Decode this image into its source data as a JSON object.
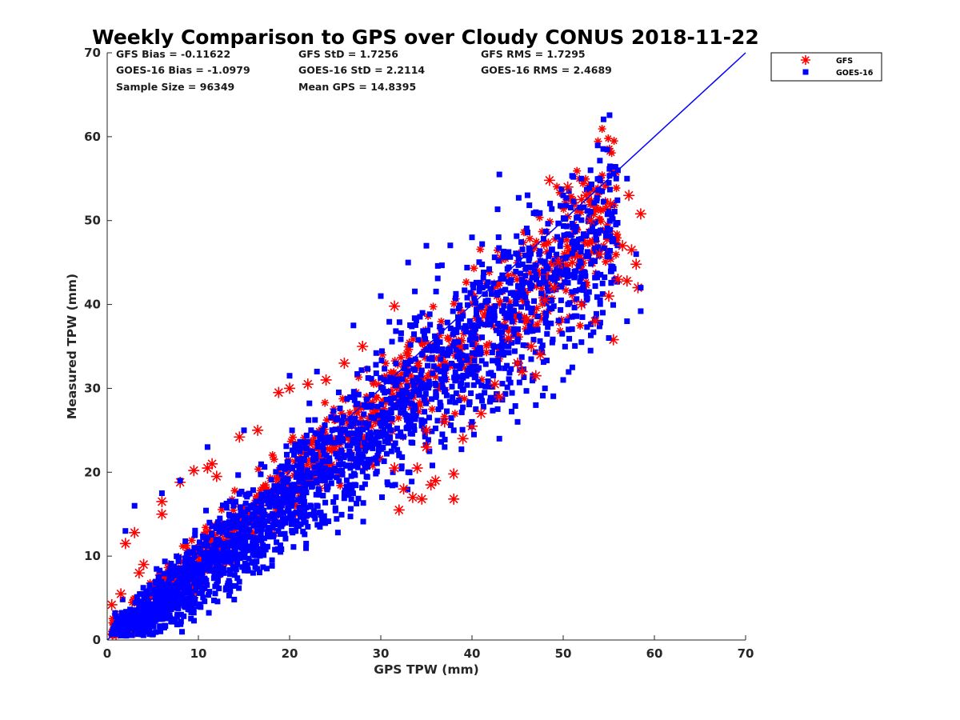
{
  "chart_data": {
    "type": "scatter",
    "title": "Weekly Comparison to GPS over Cloudy CONUS 2018-11-22",
    "xlabel": "GPS TPW (mm)",
    "ylabel": "Measured TPW (mm)",
    "xlim": [
      0,
      70
    ],
    "ylim": [
      0,
      70
    ],
    "xticks": [
      "0",
      "10",
      "20",
      "30",
      "40",
      "50",
      "60",
      "70"
    ],
    "yticks": [
      "0",
      "10",
      "20",
      "30",
      "40",
      "50",
      "60",
      "70"
    ],
    "grid": false,
    "legend_position": "outside-top-right",
    "stats": [
      [
        "GFS Bias = -0.11622",
        "GFS StD = 1.7256",
        "GFS RMS = 1.7295"
      ],
      [
        "GOES-16 Bias = -1.0979",
        "GOES-16 StD = 2.2114",
        "GOES-16 RMS = 2.4689"
      ],
      [
        "Sample Size = 96349",
        "Mean GPS = 14.8395",
        ""
      ]
    ],
    "reference_line": {
      "x": [
        0,
        70
      ],
      "y": [
        0,
        70
      ],
      "color": "#0000ff"
    },
    "series": [
      {
        "name": "GFS",
        "marker": "asterisk",
        "color": "#ff0000",
        "points": [
          [
            0.5,
            4.2
          ],
          [
            1.5,
            5.5
          ],
          [
            2,
            11.5
          ],
          [
            3,
            12.8
          ],
          [
            3.5,
            8
          ],
          [
            4,
            9
          ],
          [
            6,
            16.5
          ],
          [
            6,
            15
          ],
          [
            8,
            18.8
          ],
          [
            9.5,
            20.2
          ],
          [
            11,
            20.5
          ],
          [
            11.5,
            21
          ],
          [
            12,
            19.5
          ],
          [
            14.5,
            24.2
          ],
          [
            16.5,
            25
          ],
          [
            18.8,
            29.5
          ],
          [
            20,
            30
          ],
          [
            22,
            30.5
          ],
          [
            24,
            31
          ],
          [
            26,
            33
          ],
          [
            28,
            35
          ],
          [
            31.5,
            39.8
          ],
          [
            31.5,
            20.5
          ],
          [
            32,
            15.5
          ],
          [
            32.5,
            18
          ],
          [
            33.5,
            17
          ],
          [
            34,
            20.5
          ],
          [
            34.5,
            16.8
          ],
          [
            35,
            25
          ],
          [
            35,
            23
          ],
          [
            35.5,
            18.5
          ],
          [
            36,
            19
          ],
          [
            37,
            26
          ],
          [
            38,
            16.8
          ],
          [
            38,
            19.8
          ],
          [
            39,
            24
          ],
          [
            40,
            25.5
          ],
          [
            41,
            27
          ],
          [
            42.5,
            30.5
          ],
          [
            43,
            29
          ],
          [
            44,
            36
          ],
          [
            45,
            33
          ],
          [
            46,
            38.2
          ],
          [
            47,
            31.5
          ],
          [
            48,
            40.5
          ],
          [
            48.5,
            54.8
          ],
          [
            49,
            42
          ],
          [
            50.5,
            54
          ],
          [
            51,
            45
          ],
          [
            52,
            52.5
          ],
          [
            52.5,
            53
          ],
          [
            53,
            50
          ],
          [
            54,
            46
          ],
          [
            55,
            41
          ],
          [
            55.5,
            35.8
          ],
          [
            56,
            43
          ],
          [
            56.5,
            47
          ],
          [
            57,
            42.8
          ],
          [
            57.5,
            46.5
          ],
          [
            58,
            44.8
          ],
          [
            58.2,
            42
          ],
          [
            58.5,
            50.8
          ],
          [
            57.2,
            53
          ],
          [
            55.2,
            52
          ],
          [
            49.5,
            45
          ],
          [
            46.5,
            35
          ],
          [
            53.5,
            38
          ],
          [
            52,
            40
          ],
          [
            47.5,
            34
          ],
          [
            45.5,
            32
          ]
        ],
        "cloud": {
          "x0": 0.5,
          "x1": 56,
          "slope": 0.94,
          "intercept": -0.3,
          "spread": 1.6,
          "n": 1100
        }
      },
      {
        "name": "GOES-16",
        "marker": "square",
        "color": "#0000ff",
        "points": [
          [
            1,
            2
          ],
          [
            2,
            13
          ],
          [
            3,
            16
          ],
          [
            6,
            17.5
          ],
          [
            8,
            19
          ],
          [
            11,
            23
          ],
          [
            15,
            25
          ],
          [
            20,
            31.5
          ],
          [
            23,
            32
          ],
          [
            27,
            37.5
          ],
          [
            30,
            41
          ],
          [
            33,
            45
          ],
          [
            35,
            47
          ],
          [
            40,
            48
          ],
          [
            43,
            55.5
          ],
          [
            47,
            51
          ],
          [
            50,
            53
          ],
          [
            52,
            55
          ],
          [
            53,
            56
          ],
          [
            54,
            55
          ],
          [
            55,
            54.5
          ],
          [
            56,
            56
          ],
          [
            57,
            55
          ],
          [
            58,
            46
          ],
          [
            58.5,
            42
          ],
          [
            58.5,
            39.2
          ],
          [
            57,
            38
          ],
          [
            55,
            36
          ],
          [
            53,
            34.5
          ],
          [
            51,
            32.5
          ],
          [
            50,
            31
          ],
          [
            48,
            30
          ],
          [
            47,
            28
          ],
          [
            45,
            26
          ],
          [
            43,
            24
          ],
          [
            42,
            28.5
          ],
          [
            40,
            26
          ],
          [
            38,
            25
          ],
          [
            37,
            23
          ],
          [
            33,
            20
          ],
          [
            32,
            22
          ],
          [
            31,
            25
          ],
          [
            28,
            22
          ],
          [
            26,
            17.5
          ],
          [
            22,
            13.5
          ],
          [
            19,
            10.5
          ],
          [
            16,
            8
          ],
          [
            13,
            6
          ],
          [
            10,
            4
          ],
          [
            6,
            2.5
          ],
          [
            4,
            1.5
          ],
          [
            2,
            1
          ]
        ],
        "cloud": {
          "x0": 0.5,
          "x1": 56,
          "slope": 0.9,
          "intercept": -1.0,
          "spread": 2.2,
          "n": 2600
        }
      }
    ]
  }
}
